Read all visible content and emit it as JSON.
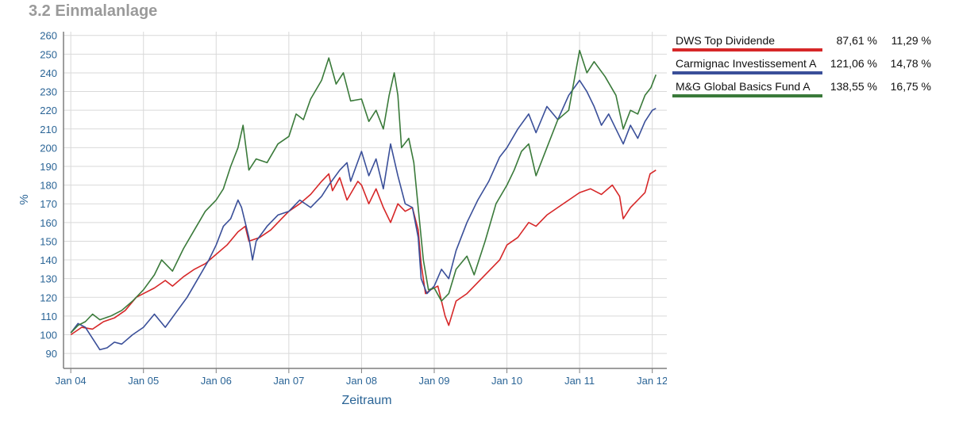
{
  "page": {
    "title": "3.2 Einmalanlage"
  },
  "colors": {
    "axis": "#2a6496",
    "grid": "#d9d9d9",
    "frame": "#7f7f7f"
  },
  "chart_data": {
    "type": "line",
    "xlabel": "Zeitraum",
    "ylabel": "%",
    "ylim": [
      82,
      262
    ],
    "yticks": [
      90,
      100,
      110,
      120,
      130,
      140,
      150,
      160,
      170,
      180,
      190,
      200,
      210,
      220,
      230,
      240,
      250,
      260
    ],
    "xlim": [
      2003.9,
      2012.2
    ],
    "xticks": [
      {
        "x": 2004,
        "label": "Jan 04"
      },
      {
        "x": 2005,
        "label": "Jan 05"
      },
      {
        "x": 2006,
        "label": "Jan 06"
      },
      {
        "x": 2007,
        "label": "Jan 07"
      },
      {
        "x": 2008,
        "label": "Jan 08"
      },
      {
        "x": 2009,
        "label": "Jan 09"
      },
      {
        "x": 2010,
        "label": "Jan 10"
      },
      {
        "x": 2011,
        "label": "Jan 11"
      },
      {
        "x": 2012,
        "label": "Jan 12"
      }
    ],
    "grid": true,
    "legend_placement": "right",
    "series": [
      {
        "name": "DWS Top Dividende",
        "perf_total": "87,61 %",
        "perf_pa": "11,29 %",
        "color": "#d62728",
        "points": [
          [
            2004.0,
            100
          ],
          [
            2004.15,
            104
          ],
          [
            2004.3,
            103
          ],
          [
            2004.45,
            107
          ],
          [
            2004.6,
            109
          ],
          [
            2004.75,
            113
          ],
          [
            2004.9,
            120
          ],
          [
            2005.0,
            122
          ],
          [
            2005.15,
            125
          ],
          [
            2005.3,
            129
          ],
          [
            2005.4,
            126
          ],
          [
            2005.55,
            131
          ],
          [
            2005.7,
            135
          ],
          [
            2005.85,
            138
          ],
          [
            2006.0,
            143
          ],
          [
            2006.15,
            148
          ],
          [
            2006.3,
            155
          ],
          [
            2006.4,
            158
          ],
          [
            2006.45,
            150
          ],
          [
            2006.6,
            152
          ],
          [
            2006.75,
            156
          ],
          [
            2006.9,
            162
          ],
          [
            2007.0,
            166
          ],
          [
            2007.15,
            170
          ],
          [
            2007.3,
            175
          ],
          [
            2007.45,
            182
          ],
          [
            2007.55,
            186
          ],
          [
            2007.6,
            177
          ],
          [
            2007.7,
            184
          ],
          [
            2007.8,
            172
          ],
          [
            2007.95,
            182
          ],
          [
            2008.0,
            180
          ],
          [
            2008.1,
            170
          ],
          [
            2008.2,
            178
          ],
          [
            2008.3,
            168
          ],
          [
            2008.4,
            160
          ],
          [
            2008.5,
            170
          ],
          [
            2008.6,
            166
          ],
          [
            2008.7,
            168
          ],
          [
            2008.78,
            156
          ],
          [
            2008.82,
            138
          ],
          [
            2008.88,
            122
          ],
          [
            2008.95,
            124
          ],
          [
            2009.05,
            126
          ],
          [
            2009.15,
            110
          ],
          [
            2009.2,
            105
          ],
          [
            2009.3,
            118
          ],
          [
            2009.45,
            122
          ],
          [
            2009.6,
            128
          ],
          [
            2009.75,
            134
          ],
          [
            2009.9,
            140
          ],
          [
            2010.0,
            148
          ],
          [
            2010.15,
            152
          ],
          [
            2010.3,
            160
          ],
          [
            2010.4,
            158
          ],
          [
            2010.55,
            164
          ],
          [
            2010.7,
            168
          ],
          [
            2010.85,
            172
          ],
          [
            2011.0,
            176
          ],
          [
            2011.15,
            178
          ],
          [
            2011.3,
            175
          ],
          [
            2011.45,
            180
          ],
          [
            2011.55,
            174
          ],
          [
            2011.6,
            162
          ],
          [
            2011.7,
            168
          ],
          [
            2011.8,
            172
          ],
          [
            2011.9,
            176
          ],
          [
            2011.97,
            186
          ],
          [
            2012.05,
            188
          ]
        ]
      },
      {
        "name": "Carmignac Investissement A",
        "perf_total": "121,06 %",
        "perf_pa": "14,78 %",
        "color": "#3a4f99",
        "points": [
          [
            2004.0,
            101
          ],
          [
            2004.1,
            106
          ],
          [
            2004.2,
            104
          ],
          [
            2004.3,
            98
          ],
          [
            2004.4,
            92
          ],
          [
            2004.5,
            93
          ],
          [
            2004.6,
            96
          ],
          [
            2004.7,
            95
          ],
          [
            2004.85,
            100
          ],
          [
            2005.0,
            104
          ],
          [
            2005.15,
            111
          ],
          [
            2005.3,
            104
          ],
          [
            2005.45,
            112
          ],
          [
            2005.6,
            120
          ],
          [
            2005.75,
            130
          ],
          [
            2005.9,
            140
          ],
          [
            2006.0,
            148
          ],
          [
            2006.1,
            158
          ],
          [
            2006.2,
            162
          ],
          [
            2006.3,
            172
          ],
          [
            2006.35,
            168
          ],
          [
            2006.45,
            152
          ],
          [
            2006.5,
            140
          ],
          [
            2006.55,
            150
          ],
          [
            2006.7,
            158
          ],
          [
            2006.85,
            164
          ],
          [
            2007.0,
            166
          ],
          [
            2007.15,
            172
          ],
          [
            2007.3,
            168
          ],
          [
            2007.45,
            174
          ],
          [
            2007.55,
            180
          ],
          [
            2007.7,
            188
          ],
          [
            2007.8,
            192
          ],
          [
            2007.85,
            182
          ],
          [
            2008.0,
            198
          ],
          [
            2008.1,
            185
          ],
          [
            2008.2,
            194
          ],
          [
            2008.3,
            178
          ],
          [
            2008.4,
            202
          ],
          [
            2008.5,
            185
          ],
          [
            2008.6,
            170
          ],
          [
            2008.7,
            168
          ],
          [
            2008.78,
            152
          ],
          [
            2008.82,
            130
          ],
          [
            2008.9,
            122
          ],
          [
            2009.0,
            126
          ],
          [
            2009.1,
            135
          ],
          [
            2009.2,
            130
          ],
          [
            2009.3,
            145
          ],
          [
            2009.45,
            160
          ],
          [
            2009.6,
            172
          ],
          [
            2009.75,
            182
          ],
          [
            2009.9,
            195
          ],
          [
            2010.0,
            200
          ],
          [
            2010.15,
            210
          ],
          [
            2010.3,
            218
          ],
          [
            2010.4,
            208
          ],
          [
            2010.55,
            222
          ],
          [
            2010.7,
            215
          ],
          [
            2010.85,
            228
          ],
          [
            2011.0,
            236
          ],
          [
            2011.1,
            230
          ],
          [
            2011.2,
            222
          ],
          [
            2011.3,
            212
          ],
          [
            2011.4,
            218
          ],
          [
            2011.5,
            210
          ],
          [
            2011.6,
            202
          ],
          [
            2011.7,
            212
          ],
          [
            2011.8,
            205
          ],
          [
            2011.9,
            214
          ],
          [
            2012.0,
            220
          ],
          [
            2012.05,
            221
          ]
        ]
      },
      {
        "name": "M&G Global Basics Fund A",
        "perf_total": "138,55 %",
        "perf_pa": "16,75 %",
        "color": "#3a7a3a",
        "points": [
          [
            2004.0,
            101
          ],
          [
            2004.1,
            105
          ],
          [
            2004.2,
            107
          ],
          [
            2004.3,
            111
          ],
          [
            2004.4,
            108
          ],
          [
            2004.55,
            110
          ],
          [
            2004.7,
            113
          ],
          [
            2004.85,
            118
          ],
          [
            2005.0,
            124
          ],
          [
            2005.15,
            132
          ],
          [
            2005.25,
            140
          ],
          [
            2005.4,
            134
          ],
          [
            2005.55,
            146
          ],
          [
            2005.7,
            156
          ],
          [
            2005.85,
            166
          ],
          [
            2006.0,
            172
          ],
          [
            2006.1,
            178
          ],
          [
            2006.2,
            190
          ],
          [
            2006.3,
            200
          ],
          [
            2006.37,
            212
          ],
          [
            2006.45,
            188
          ],
          [
            2006.55,
            194
          ],
          [
            2006.7,
            192
          ],
          [
            2006.85,
            202
          ],
          [
            2007.0,
            206
          ],
          [
            2007.1,
            218
          ],
          [
            2007.2,
            215
          ],
          [
            2007.3,
            226
          ],
          [
            2007.45,
            236
          ],
          [
            2007.55,
            248
          ],
          [
            2007.65,
            234
          ],
          [
            2007.75,
            240
          ],
          [
            2007.85,
            225
          ],
          [
            2008.0,
            226
          ],
          [
            2008.1,
            214
          ],
          [
            2008.2,
            220
          ],
          [
            2008.3,
            210
          ],
          [
            2008.38,
            228
          ],
          [
            2008.45,
            240
          ],
          [
            2008.5,
            228
          ],
          [
            2008.55,
            200
          ],
          [
            2008.65,
            205
          ],
          [
            2008.72,
            192
          ],
          [
            2008.78,
            168
          ],
          [
            2008.85,
            140
          ],
          [
            2008.92,
            124
          ],
          [
            2009.0,
            125
          ],
          [
            2009.1,
            118
          ],
          [
            2009.2,
            122
          ],
          [
            2009.3,
            135
          ],
          [
            2009.45,
            142
          ],
          [
            2009.55,
            132
          ],
          [
            2009.7,
            150
          ],
          [
            2009.85,
            170
          ],
          [
            2010.0,
            180
          ],
          [
            2010.1,
            188
          ],
          [
            2010.2,
            198
          ],
          [
            2010.3,
            202
          ],
          [
            2010.4,
            185
          ],
          [
            2010.55,
            200
          ],
          [
            2010.7,
            215
          ],
          [
            2010.85,
            220
          ],
          [
            2011.0,
            252
          ],
          [
            2011.1,
            240
          ],
          [
            2011.2,
            246
          ],
          [
            2011.35,
            238
          ],
          [
            2011.5,
            228
          ],
          [
            2011.6,
            210
          ],
          [
            2011.7,
            220
          ],
          [
            2011.8,
            218
          ],
          [
            2011.9,
            228
          ],
          [
            2011.98,
            232
          ],
          [
            2012.05,
            239
          ]
        ]
      }
    ]
  }
}
